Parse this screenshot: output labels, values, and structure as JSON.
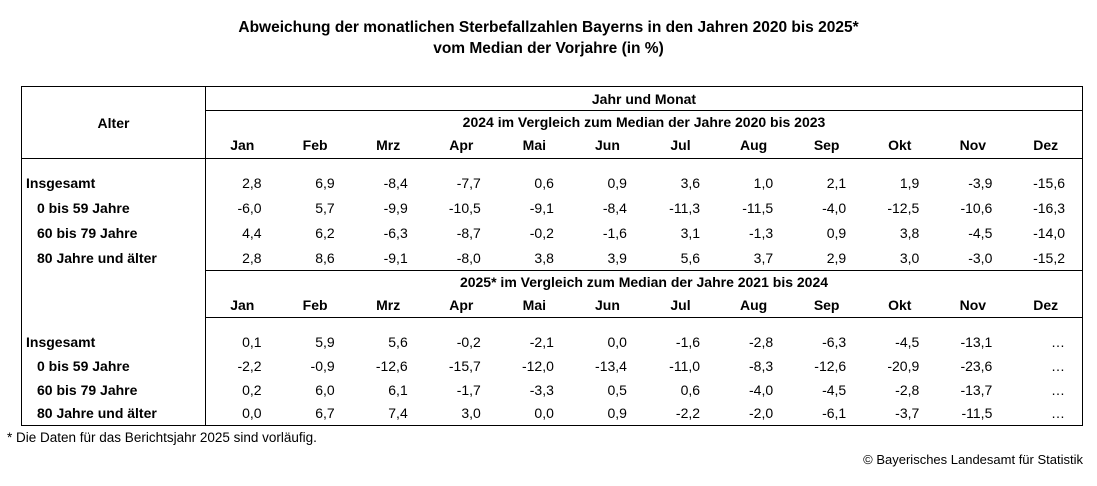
{
  "title": {
    "line1": "Abweichung der monatlichen Sterbefallzahlen Bayerns in den Jahren 2020 bis 2025*",
    "line2": "vom Median der Vorjahre (in %)"
  },
  "table": {
    "age_header": "Alter",
    "group_header": "Jahr und Monat",
    "months": [
      "Jan",
      "Feb",
      "Mrz",
      "Apr",
      "Mai",
      "Jun",
      "Jul",
      "Aug",
      "Sep",
      "Okt",
      "Nov",
      "Dez"
    ],
    "sections": [
      {
        "header": "2024 im Vergleich zum Median der Jahre 2020 bis 2023",
        "rows": [
          {
            "label": "Insgesamt",
            "values": [
              "2,8",
              "6,9",
              "-8,4",
              "-7,7",
              "0,6",
              "0,9",
              "3,6",
              "1,0",
              "2,1",
              "1,9",
              "-3,9",
              "-15,6"
            ]
          },
          {
            "label": "0 bis 59 Jahre",
            "values": [
              "-6,0",
              "5,7",
              "-9,9",
              "-10,5",
              "-9,1",
              "-8,4",
              "-11,3",
              "-11,5",
              "-4,0",
              "-12,5",
              "-10,6",
              "-16,3"
            ]
          },
          {
            "label": "60 bis 79 Jahre",
            "values": [
              "4,4",
              "6,2",
              "-6,3",
              "-8,7",
              "-0,2",
              "-1,6",
              "3,1",
              "-1,3",
              "0,9",
              "3,8",
              "-4,5",
              "-14,0"
            ]
          },
          {
            "label": "80 Jahre und älter",
            "values": [
              "2,8",
              "8,6",
              "-9,1",
              "-8,0",
              "3,8",
              "3,9",
              "5,6",
              "3,7",
              "2,9",
              "3,0",
              "-3,0",
              "-15,2"
            ]
          }
        ]
      },
      {
        "header": "2025* im Vergleich zum Median der Jahre 2021 bis 2024",
        "rows": [
          {
            "label": "Insgesamt",
            "values": [
              "0,1",
              "5,9",
              "5,6",
              "-0,2",
              "-2,1",
              "0,0",
              "-1,6",
              "-2,8",
              "-6,3",
              "-4,5",
              "-13,1",
              "…"
            ]
          },
          {
            "label": "0 bis 59 Jahre",
            "values": [
              "-2,2",
              "-0,9",
              "-12,6",
              "-15,7",
              "-12,0",
              "-13,4",
              "-11,0",
              "-8,3",
              "-12,6",
              "-20,9",
              "-23,6",
              "…"
            ]
          },
          {
            "label": "60 bis 79 Jahre",
            "values": [
              "0,2",
              "6,0",
              "6,1",
              "-1,7",
              "-3,3",
              "0,5",
              "0,6",
              "-4,0",
              "-4,5",
              "-2,8",
              "-13,7",
              "…"
            ]
          },
          {
            "label": "80 Jahre und älter",
            "values": [
              "0,0",
              "6,7",
              "7,4",
              "3,0",
              "0,0",
              "0,9",
              "-2,2",
              "-2,0",
              "-6,1",
              "-3,7",
              "-11,5",
              "…"
            ]
          }
        ]
      }
    ]
  },
  "footnote": "* Die Daten für das Berichtsjahr 2025 sind vorläufig.",
  "copyright": "© Bayerisches Landesamt für Statistik",
  "colors": {
    "text": "#000000",
    "background": "#ffffff",
    "border": "#000000"
  }
}
